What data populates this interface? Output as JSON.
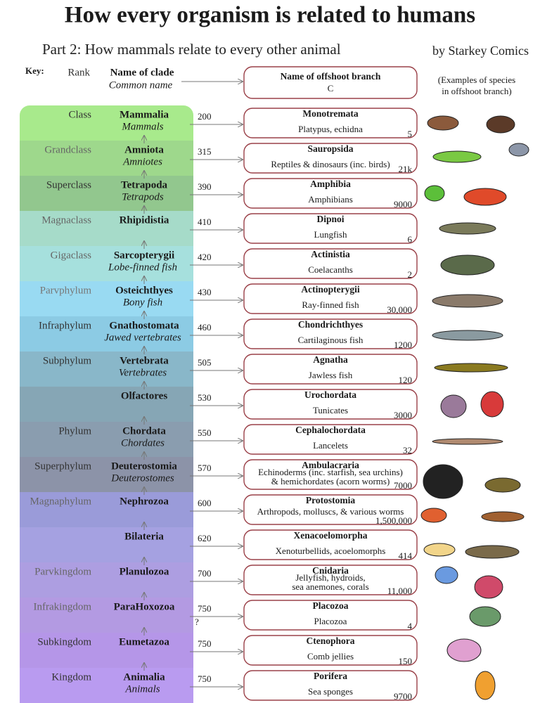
{
  "header": {
    "title": "How every organism is related to humans",
    "subtitle": "Part 2: How mammals relate to every other animal",
    "credit": "by Starkey Comics"
  },
  "key": {
    "label": "Key:",
    "rank": "Rank",
    "clade": "Name of clade",
    "common": "Common name",
    "branch": "Name of offshoot branch",
    "desc": "Common name / examples",
    "examples": [
      "(Examples of species",
      "in offshoot branch)"
    ]
  },
  "rows": [
    {
      "rank": "Class",
      "clade": "Mammalia",
      "common": "Mammals",
      "mya": 200,
      "branch": "Monotremata",
      "desc": [
        "Platypus, echidna"
      ],
      "count": "5"
    },
    {
      "rank": "Grandclass",
      "clade": "Amniota",
      "common": "Amniotes",
      "mya": 315,
      "branch": "Sauropsida",
      "desc": [
        "Reptiles & dinosaurs (inc. birds)"
      ],
      "count": "21k"
    },
    {
      "rank": "Superclass",
      "clade": "Tetrapoda",
      "common": "Tetrapods",
      "mya": 390,
      "branch": "Amphibia",
      "desc": [
        "Amphibians"
      ],
      "count": "9000"
    },
    {
      "rank": "Magnaclass",
      "clade": "Rhipidistia",
      "mya": 410,
      "branch": "Dipnoi",
      "desc": [
        "Lungfish"
      ],
      "count": "6"
    },
    {
      "rank": "Gigaclass",
      "clade": "Sarcopterygii",
      "common": "Lobe-finned fish",
      "mya": 420,
      "branch": "Actinistia",
      "desc": [
        "Coelacanths"
      ],
      "count": "2"
    },
    {
      "rank": "Parvphylum",
      "clade": "Osteichthyes",
      "common": "Bony fish",
      "mya": 430,
      "branch": "Actinopterygii",
      "desc": [
        "Ray-finned fish"
      ],
      "count": "30,000"
    },
    {
      "rank": "Infraphylum",
      "clade": "Gnathostomata",
      "common": "Jawed vertebrates",
      "mya": 460,
      "branch": "Chondrichthyes",
      "desc": [
        "Cartilaginous fish"
      ],
      "count": "1200"
    },
    {
      "rank": "Subphylum",
      "clade": "Vertebrata",
      "common": "Vertebrates",
      "mya": 505,
      "branch": "Agnatha",
      "desc": [
        "Jawless fish"
      ],
      "count": "120"
    },
    {
      "clade": "Olfactores",
      "mya": 530,
      "branch": "Urochordata",
      "desc": [
        "Tunicates"
      ],
      "count": "3000"
    },
    {
      "rank": "Phylum",
      "clade": "Chordata",
      "common": "Chordates",
      "mya": 550,
      "branch": "Cephalochordata",
      "desc": [
        "Lancelets"
      ],
      "count": "32"
    },
    {
      "rank": "Superphylum",
      "clade": "Deuterostomia",
      "common": "Deuterostomes",
      "mya": 570,
      "branch": "Ambulacraria",
      "desc": [
        "Echinoderms (inc. starfish, sea urchins)",
        "& hemichordates (acorn worms)"
      ],
      "count": "7000"
    },
    {
      "rank": "Magnaphylum",
      "clade": "Nephrozoa",
      "mya": 600,
      "branch": "Protostomia",
      "desc": [
        "Arthropods, molluscs, & various worms"
      ],
      "count": "1,500,000"
    },
    {
      "clade": "Bilateria",
      "mya": 620,
      "branch": "Xenacoelomorpha",
      "desc": [
        "Xenoturbellids, acoelomorphs"
      ],
      "count": "414"
    },
    {
      "rank": "Parvkingdom",
      "clade": "Planulozoa",
      "mya": 700,
      "branch": "Cnidaria",
      "desc": [
        "Jellyfish, hydroids,",
        "sea anemones, corals"
      ],
      "count": "11,000"
    },
    {
      "rank": "Infrakingdom",
      "clade": "ParaHoxozoa",
      "mya": 750,
      "note": "?",
      "branch": "Placozoa",
      "desc": [
        "Placozoa"
      ],
      "count": "4"
    },
    {
      "rank": "Subkingdom",
      "clade": "Eumetazoa",
      "mya": 750,
      "branch": "Ctenophora",
      "desc": [
        "Comb jellies"
      ],
      "count": "150"
    },
    {
      "rank": "Kingdom",
      "clade": "Animalia",
      "common": "Animals",
      "mya": 750,
      "branch": "Porifera",
      "desc": [
        "Sea sponges"
      ],
      "count": "9700"
    }
  ]
}
